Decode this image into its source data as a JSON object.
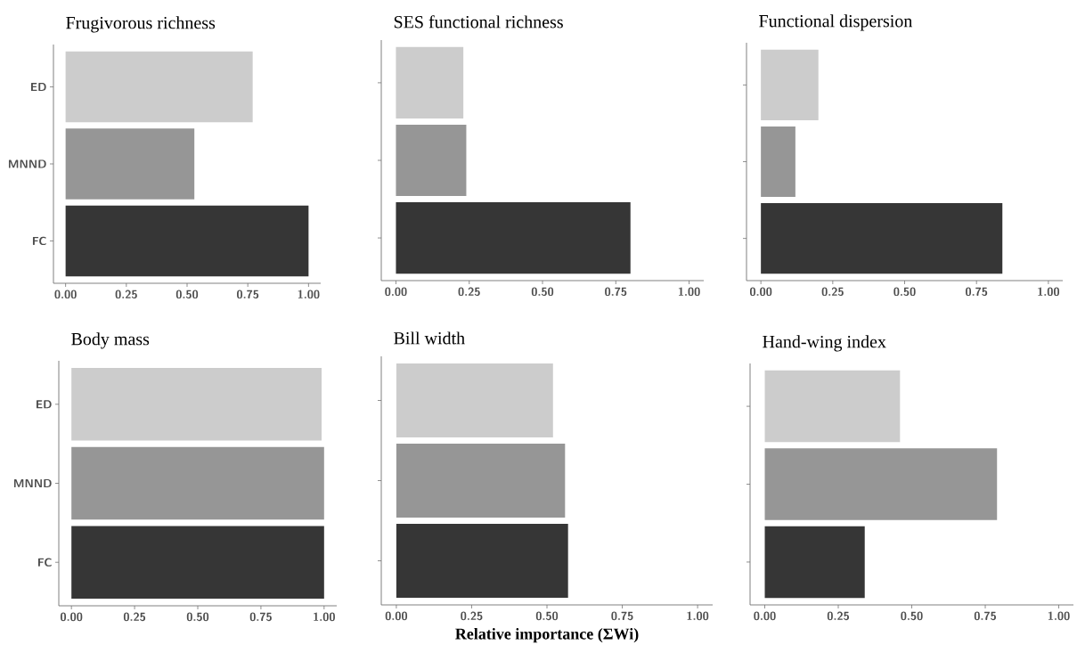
{
  "chart_data": [
    {
      "type": "bar",
      "orientation": "horizontal",
      "title": "Frugivorous richness",
      "categories": [
        "ED",
        "MNND",
        "FC"
      ],
      "values": [
        0.77,
        0.53,
        1.0
      ],
      "colors": [
        "#cccccc",
        "#969696",
        "#363636"
      ],
      "xlim": [
        -0.05,
        1.05
      ],
      "xticks": [
        {
          "value": 0,
          "label": "0.00"
        },
        {
          "value": 0.25,
          "label": "0.25"
        },
        {
          "value": 0.5,
          "label": "0.50"
        },
        {
          "value": 0.75,
          "label": "0.75"
        },
        {
          "value": 1,
          "label": "1.00"
        }
      ]
    },
    {
      "type": "bar",
      "orientation": "horizontal",
      "title": "SES functional richness",
      "categories": [
        null,
        null,
        null
      ],
      "values": [
        0.23,
        0.24,
        0.8
      ],
      "colors": [
        "#cccccc",
        "#969696",
        "#363636"
      ],
      "xlim": [
        -0.05,
        1.05
      ],
      "xticks": [
        {
          "value": 0,
          "label": "0.00"
        },
        {
          "value": 0.25,
          "label": "0.25"
        },
        {
          "value": 0.5,
          "label": "0.50"
        },
        {
          "value": 0.75,
          "label": "0.75"
        },
        {
          "value": 1,
          "label": "1.00"
        }
      ]
    },
    {
      "type": "bar",
      "orientation": "horizontal",
      "title": "Functional dispersion",
      "categories": [
        null,
        null,
        null
      ],
      "values": [
        0.2,
        0.12,
        0.84
      ],
      "colors": [
        "#cccccc",
        "#969696",
        "#363636"
      ],
      "xlim": [
        -0.05,
        1.05
      ],
      "xticks": [
        {
          "value": 0,
          "label": "0.00"
        },
        {
          "value": 0.25,
          "label": "0.25"
        },
        {
          "value": 0.5,
          "label": "0.50"
        },
        {
          "value": 0.75,
          "label": "0.75"
        },
        {
          "value": 1,
          "label": "1.00"
        }
      ]
    },
    {
      "type": "bar",
      "orientation": "horizontal",
      "title": "Body mass",
      "categories": [
        "ED",
        "MNND",
        "FC"
      ],
      "values": [
        0.99,
        1.0,
        1.0
      ],
      "colors": [
        "#cccccc",
        "#969696",
        "#363636"
      ],
      "xlim": [
        -0.05,
        1.05
      ],
      "xticks": [
        {
          "value": 0,
          "label": "0.00"
        },
        {
          "value": 0.25,
          "label": "0.25"
        },
        {
          "value": 0.5,
          "label": "0.50"
        },
        {
          "value": 0.75,
          "label": "0.75"
        },
        {
          "value": 1,
          "label": "1.00"
        }
      ]
    },
    {
      "type": "bar",
      "orientation": "horizontal",
      "title": "Bill width",
      "xlabel": "Relative importance (ΣWi)",
      "categories": [
        null,
        null,
        null
      ],
      "values": [
        0.52,
        0.56,
        0.57
      ],
      "colors": [
        "#cccccc",
        "#969696",
        "#363636"
      ],
      "xlim": [
        -0.05,
        1.05
      ],
      "xticks": [
        {
          "value": 0,
          "label": "0.00"
        },
        {
          "value": 0.25,
          "label": "0.25"
        },
        {
          "value": 0.5,
          "label": "0.50"
        },
        {
          "value": 0.75,
          "label": "0.75"
        },
        {
          "value": 1,
          "label": "1.00"
        }
      ]
    },
    {
      "type": "bar",
      "orientation": "horizontal",
      "title": "Hand-wing index",
      "categories": [
        null,
        null,
        null
      ],
      "values": [
        0.46,
        0.79,
        0.34
      ],
      "colors": [
        "#cccccc",
        "#969696",
        "#363636"
      ],
      "xlim": [
        -0.05,
        1.05
      ],
      "xticks": [
        {
          "value": 0,
          "label": "0.00"
        },
        {
          "value": 0.25,
          "label": "0.25"
        },
        {
          "value": 0.5,
          "label": "0.50"
        },
        {
          "value": 0.75,
          "label": "0.75"
        },
        {
          "value": 1,
          "label": "1.00"
        }
      ]
    }
  ]
}
